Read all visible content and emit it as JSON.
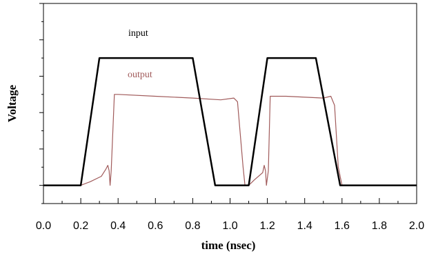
{
  "chart_data": {
    "type": "line",
    "xlabel": "time (nsec)",
    "ylabel": "Voltage",
    "xlim": [
      0.0,
      2.0
    ],
    "ylim": [
      -0.1,
      1.0
    ],
    "x_ticks": [
      "0.0",
      "0.2",
      "0.4",
      "0.6",
      "0.8",
      "1.0",
      "1.2",
      "1.4",
      "1.6",
      "1.8",
      "2.0"
    ],
    "y_ticks_shown": false,
    "grid": false,
    "legend": "inline labels",
    "series": [
      {
        "name": "input",
        "color": "#000000",
        "points": [
          [
            0.0,
            0.0
          ],
          [
            0.2,
            0.0
          ],
          [
            0.3,
            0.7
          ],
          [
            0.8,
            0.7
          ],
          [
            0.92,
            0.0
          ],
          [
            1.1,
            0.0
          ],
          [
            1.2,
            0.7
          ],
          [
            1.46,
            0.7
          ],
          [
            1.59,
            0.0
          ],
          [
            2.0,
            0.0
          ]
        ]
      },
      {
        "name": "output",
        "color": "#a05a5a",
        "points": [
          [
            0.0,
            0.0
          ],
          [
            0.2,
            0.0
          ],
          [
            0.25,
            0.02
          ],
          [
            0.31,
            0.05
          ],
          [
            0.335,
            0.09
          ],
          [
            0.345,
            0.11
          ],
          [
            0.352,
            0.08
          ],
          [
            0.357,
            0.0
          ],
          [
            0.363,
            0.08
          ],
          [
            0.38,
            0.5
          ],
          [
            0.4,
            0.5
          ],
          [
            0.6,
            0.49
          ],
          [
            0.8,
            0.48
          ],
          [
            0.95,
            0.47
          ],
          [
            1.02,
            0.48
          ],
          [
            1.04,
            0.46
          ],
          [
            1.07,
            0.1
          ],
          [
            1.08,
            0.0
          ],
          [
            1.1,
            0.0
          ],
          [
            1.13,
            0.03
          ],
          [
            1.175,
            0.07
          ],
          [
            1.183,
            0.11
          ],
          [
            1.19,
            0.08
          ],
          [
            1.195,
            0.0
          ],
          [
            1.205,
            0.08
          ],
          [
            1.215,
            0.49
          ],
          [
            1.3,
            0.49
          ],
          [
            1.5,
            0.48
          ],
          [
            1.54,
            0.49
          ],
          [
            1.56,
            0.44
          ],
          [
            1.58,
            0.1
          ],
          [
            1.6,
            0.0
          ],
          [
            1.8,
            0.0
          ],
          [
            2.0,
            0.0
          ]
        ]
      }
    ]
  }
}
